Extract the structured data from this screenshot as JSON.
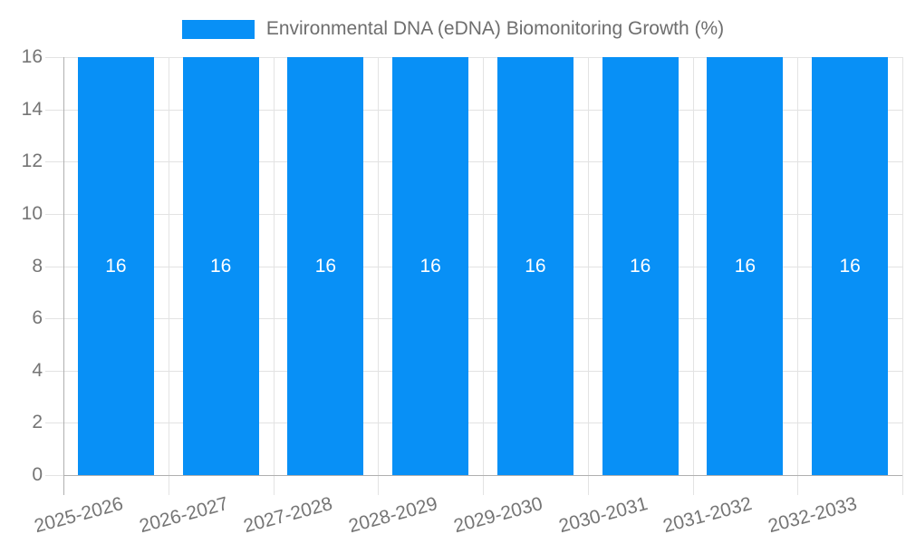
{
  "legend": {
    "label": "Environmental DNA (eDNA) Biomonitoring Growth (%)",
    "swatch_color": "#0890f6"
  },
  "chart_data": {
    "type": "bar",
    "title": "Environmental DNA (eDNA) Biomonitoring Growth (%)",
    "categories": [
      "2025-2026",
      "2026-2027",
      "2027-2028",
      "2028-2029",
      "2029-2030",
      "2030-2031",
      "2031-2032",
      "2032-2033"
    ],
    "series": [
      {
        "name": "Environmental DNA (eDNA) Biomonitoring Growth (%)",
        "values": [
          16,
          16,
          16,
          16,
          16,
          16,
          16,
          16
        ]
      }
    ],
    "bar_labels": [
      "16",
      "16",
      "16",
      "16",
      "16",
      "16",
      "16",
      "16"
    ],
    "xlabel": "",
    "ylabel": "",
    "ylim": [
      0,
      16
    ],
    "yticks": [
      0,
      2,
      4,
      6,
      8,
      10,
      12,
      14,
      16
    ],
    "grid": true,
    "legend_position": "top",
    "bar_color": "#0890f6",
    "bar_label_color": "#ffffff",
    "grid_color": "#e3e3e3",
    "axis_color": "#b0b0b0",
    "tick_label_color": "#757575",
    "x_label_rotation_deg": -15
  }
}
